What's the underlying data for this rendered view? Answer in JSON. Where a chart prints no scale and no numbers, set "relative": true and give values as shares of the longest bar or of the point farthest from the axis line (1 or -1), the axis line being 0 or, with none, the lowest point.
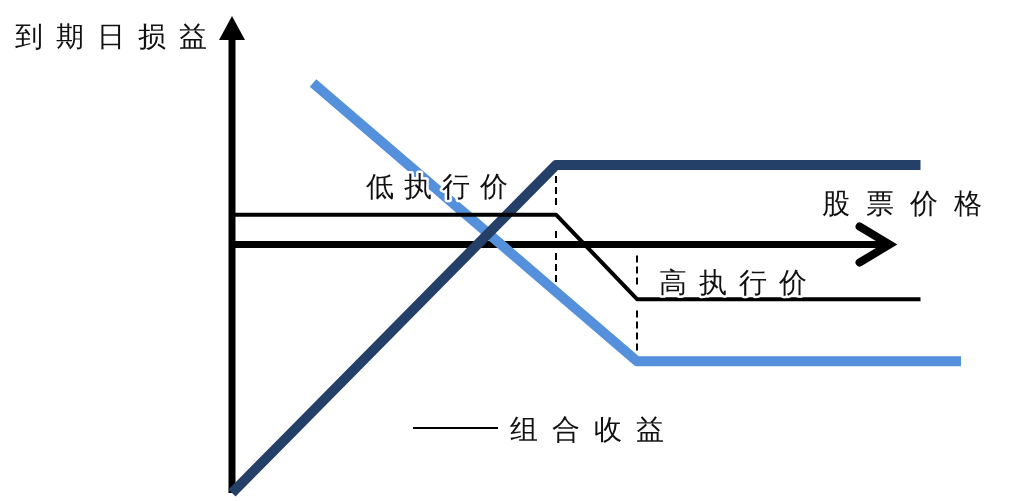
{
  "chart_data": {
    "type": "line",
    "xlabel": "股票价格",
    "ylabel": "到期日损益",
    "relative": true,
    "legend": "bottom",
    "line_style": "solid",
    "categories": [
      null,
      null,
      null,
      null,
      null,
      null,
      null,
      null,
      null,
      null,
      null,
      null,
      null,
      null,
      null,
      null,
      null,
      null,
      null
    ],
    "series": [
      {
        "color": "#5590dc",
        "values": [
          null,
          null,
          0.65,
          0.51,
          0.37,
          0.23,
          0.09,
          -0.05,
          -0.19,
          -0.33,
          -0.47,
          -0.47,
          -0.47,
          -0.47,
          -0.47,
          -0.47,
          -0.47,
          -0.47,
          -0.47
        ]
      },
      {
        "color": "#243f68",
        "values": [
          -1,
          -0.835,
          -0.67,
          -0.505,
          -0.34,
          -0.175,
          -0.01,
          0.155,
          0.32,
          0.32,
          0.32,
          0.32,
          0.32,
          0.32,
          0.32,
          0.32,
          0.32,
          0.32,
          null
        ]
      },
      {
        "name": "组合收益",
        "color": "#000000",
        "values": [
          0.12,
          0.12,
          0.12,
          0.12,
          0.12,
          0.12,
          0.12,
          0.12,
          0.12,
          -0.05,
          -0.22,
          -0.22,
          -0.22,
          -0.22,
          -0.22,
          -0.22,
          -0.22,
          -0.22,
          null
        ]
      }
    ],
    "annotations": [
      "低执行价",
      "高执行价"
    ]
  }
}
